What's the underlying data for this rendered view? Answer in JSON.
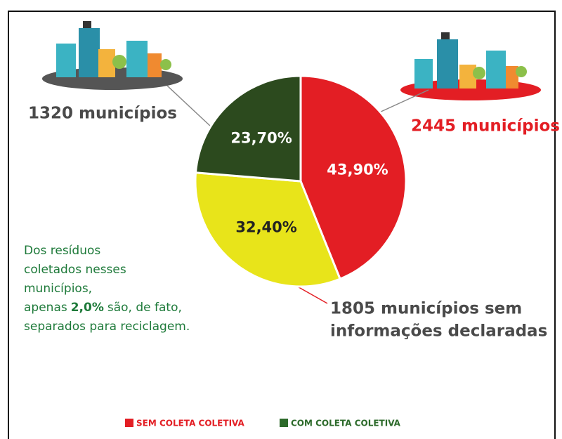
{
  "chart_data": {
    "type": "pie",
    "values": [
      43.9,
      32.4,
      23.7
    ],
    "value_labels": [
      "43,90%",
      "32,40%",
      "23,70%"
    ],
    "colors": [
      "#e31e24",
      "#e8e41a",
      "#2c4a1e"
    ],
    "label_colors": [
      "#ffffff",
      "#222222",
      "#ffffff"
    ],
    "callouts": [
      {
        "lines": [
          "2445 municípios"
        ],
        "color": "#e31e24"
      },
      {
        "lines": [
          "1805 municípios sem",
          "informações declaradas"
        ],
        "color": "#4a4a4a"
      },
      {
        "lines": [
          "1320 municípios"
        ],
        "color": "#4a4a4a"
      }
    ],
    "note": {
      "lines": [
        "Dos resíduos",
        "coletados nesses",
        "municípios,"
      ],
      "before": "apenas",
      "emphasis": "2,0%",
      "after": "são, de fato,",
      "last": "separados para reciclagem.",
      "color": "#1e7a3a"
    },
    "legend": [
      {
        "name": "SEM COLETA COLETIVA",
        "color": "#e31e24"
      },
      {
        "name": "COM COLETA COLETIVA",
        "color": "#2c6a2a"
      }
    ]
  }
}
